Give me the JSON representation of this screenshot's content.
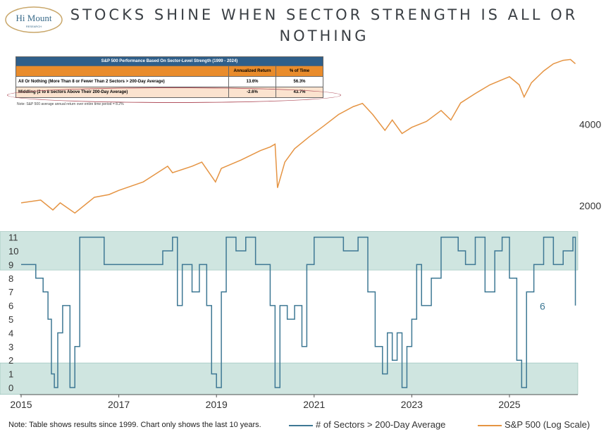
{
  "title": "Stocks Shine When Sector Strength Is All or Nothing",
  "logo": {
    "line1": "Hi Mount",
    "line2": "RESEARCH"
  },
  "table": {
    "title": "S&P 500 Performance Based On Sector-Level Strength (1999 - 2024)",
    "headers": [
      "",
      "Annualized Return",
      "% of Time"
    ],
    "rows": [
      [
        "All Or Nothing (More Than 8 or Fewer Than 2 Sectors > 200-Day Average)",
        "13.6%",
        "56.3%"
      ],
      [
        "Middling (2 to 8 Sectors Above Their 200-Day Average)",
        "-2.6%",
        "43.7%"
      ]
    ],
    "note": "Note: S&P 500 average annual return over entire time period = 8.2%"
  },
  "footnote": "Note: Table shows results since 1999. Chart only shows the last 10 years.",
  "colors": {
    "sectors": "#3e7894",
    "sp500": "#e59443",
    "band": "#cfe5e0"
  },
  "chart_data": {
    "type": "line",
    "x_ticks": [
      "2015",
      "2017",
      "2019",
      "2021",
      "2023",
      "2025"
    ],
    "y_left_ticks": [
      "0",
      "1",
      "2",
      "3",
      "4",
      "5",
      "6",
      "7",
      "8",
      "9",
      "10",
      "11"
    ],
    "y_right_ticks": [
      "2000",
      "4000"
    ],
    "y_left_range": [
      0,
      11
    ],
    "y_right_log": true,
    "last_value_label": "6",
    "series": [
      {
        "name": "# of Sectors > 200-Day Average",
        "axis": "left",
        "x": [
          2015.0,
          2015.3,
          2015.45,
          2015.55,
          2015.62,
          2015.68,
          2015.75,
          2015.85,
          2016.0,
          2016.1,
          2016.2,
          2016.3,
          2016.5,
          2016.7,
          2016.85,
          2017.0,
          2017.3,
          2017.6,
          2017.9,
          2018.1,
          2018.2,
          2018.3,
          2018.5,
          2018.65,
          2018.8,
          2018.9,
          2019.0,
          2019.1,
          2019.2,
          2019.4,
          2019.6,
          2019.8,
          2020.0,
          2020.1,
          2020.2,
          2020.3,
          2020.45,
          2020.6,
          2020.75,
          2020.85,
          2021.0,
          2021.3,
          2021.6,
          2021.9,
          2022.0,
          2022.1,
          2022.25,
          2022.4,
          2022.5,
          2022.6,
          2022.7,
          2022.8,
          2022.9,
          2023.0,
          2023.1,
          2023.2,
          2023.4,
          2023.6,
          2023.8,
          2023.95,
          2024.1,
          2024.3,
          2024.5,
          2024.7,
          2024.85,
          2025.0,
          2025.15,
          2025.25,
          2025.35,
          2025.5,
          2025.7,
          2025.9,
          2026.1,
          2026.3,
          2026.35
        ],
        "y": [
          9,
          8,
          7,
          5,
          1,
          0,
          4,
          6,
          0,
          3,
          11,
          11,
          11,
          9,
          9,
          9,
          9,
          9,
          10,
          11,
          6,
          9,
          7,
          9,
          6,
          1,
          0,
          7,
          11,
          10,
          11,
          9,
          9,
          6,
          0,
          6,
          5,
          6,
          3,
          9,
          11,
          11,
          10,
          11,
          11,
          7,
          3,
          1,
          4,
          2,
          4,
          0,
          3,
          5,
          9,
          6,
          8,
          11,
          11,
          10,
          9,
          11,
          7,
          10,
          11,
          8,
          2,
          0,
          7,
          9,
          11,
          9,
          10,
          11,
          6
        ]
      },
      {
        "name": "S&P 500 (Log Scale)",
        "axis": "right",
        "x": [
          2015.0,
          2015.4,
          2015.65,
          2015.8,
          2016.1,
          2016.5,
          2016.8,
          2017.0,
          2017.5,
          2018.0,
          2018.1,
          2018.5,
          2018.7,
          2018.98,
          2019.1,
          2019.5,
          2019.9,
          2020.1,
          2020.2,
          2020.25,
          2020.4,
          2020.6,
          2020.9,
          2021.2,
          2021.5,
          2021.8,
          2021.99,
          2022.2,
          2022.45,
          2022.6,
          2022.8,
          2023.0,
          2023.3,
          2023.6,
          2023.8,
          2024.0,
          2024.3,
          2024.6,
          2024.9,
          2025.0,
          2025.2,
          2025.3,
          2025.45,
          2025.7,
          2025.9,
          2026.1,
          2026.25,
          2026.35
        ],
        "y": [
          2050,
          2100,
          1930,
          2050,
          1880,
          2150,
          2200,
          2280,
          2450,
          2800,
          2650,
          2800,
          2900,
          2450,
          2750,
          2950,
          3200,
          3300,
          3380,
          2330,
          2900,
          3250,
          3600,
          3950,
          4350,
          4650,
          4780,
          4350,
          3800,
          4150,
          3700,
          3900,
          4100,
          4500,
          4150,
          4800,
          5200,
          5600,
          5900,
          6000,
          5600,
          5050,
          5700,
          6300,
          6700,
          6900,
          6950,
          6700
        ]
      }
    ]
  }
}
